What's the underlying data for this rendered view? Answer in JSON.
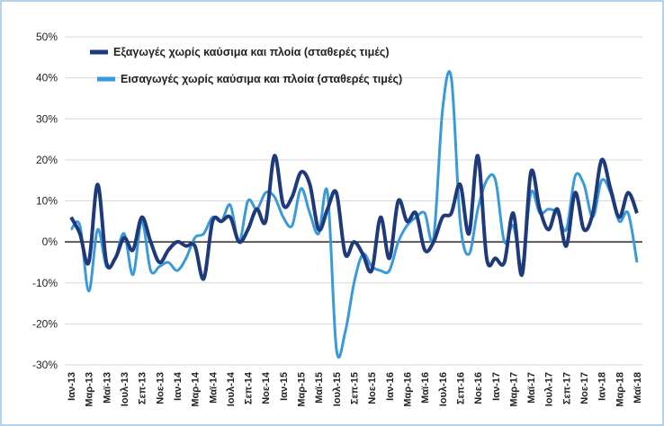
{
  "chart_data": {
    "type": "line",
    "categories": [
      "Ιαν-13",
      null,
      "Μαρ-13",
      null,
      "Μαϊ-13",
      null,
      "Ιουλ-13",
      null,
      "Σεπ-13",
      null,
      "Νοε-13",
      null,
      "Ιαν-14",
      null,
      "Μαρ-14",
      null,
      "Μαϊ-14",
      null,
      "Ιουλ-14",
      null,
      "Σεπ-14",
      null,
      "Νοε-14",
      null,
      "Ιαν-15",
      null,
      "Μαρ-15",
      null,
      "Μαϊ-15",
      null,
      "Ιουλ-15",
      null,
      "Σεπ-15",
      null,
      "Νοε-15",
      null,
      "Ιαν-16",
      null,
      "Μαρ-16",
      null,
      "Μαϊ-16",
      null,
      "Ιουλ-16",
      null,
      "Σεπ-16",
      null,
      "Νοε-16",
      null,
      "Ιαν-17",
      null,
      "Μαρ-17",
      null,
      "Μαϊ-17",
      null,
      "Ιουλ-17",
      null,
      "Σεπ-17",
      null,
      "Νοε-17",
      null,
      "Ιαν-18",
      null,
      "Μαρ-18",
      null,
      "Μαϊ-18"
    ],
    "series": [
      {
        "name": "Εξαγωγές χωρίς καύσιμα και πλοία (σταθερές τιμές)",
        "color": "#1f3a7a",
        "values": [
          6,
          2,
          -5,
          14,
          -5,
          -4,
          1,
          -2,
          6,
          0,
          -5,
          -2,
          0,
          -1,
          -1,
          -9,
          5,
          5,
          6,
          0,
          3,
          8,
          5,
          21,
          9,
          11,
          17,
          14,
          3,
          8,
          12,
          -3,
          0,
          -3,
          -7,
          6,
          -4,
          10,
          5,
          7,
          -2,
          0,
          6,
          7,
          14,
          2,
          21,
          -4,
          -4,
          -5,
          7,
          -8,
          17,
          8,
          3,
          8,
          -1,
          12,
          3,
          7,
          20,
          13,
          6,
          12,
          7
        ]
      },
      {
        "name": "Εισαγωγές χωρίς καύσιμα και πλοία (σταθερές τιμές)",
        "color": "#3a9ad9",
        "values": [
          3,
          4,
          -12,
          3,
          -6,
          -4,
          2,
          -8,
          5,
          -7,
          -6,
          -5,
          -7,
          -4,
          1,
          2,
          6,
          5,
          9,
          0,
          10,
          8,
          12,
          11,
          6,
          4,
          13,
          7,
          2,
          12,
          -26,
          -22,
          -10,
          -3,
          -6,
          -7,
          -7,
          0,
          4,
          6,
          7,
          1,
          32,
          40,
          5,
          -3,
          8,
          15,
          15,
          0,
          4,
          -6,
          12,
          7,
          8,
          7,
          3,
          16,
          14,
          6,
          15,
          12,
          5,
          7,
          -5
        ]
      }
    ],
    "ylim": [
      -30,
      50
    ],
    "yticks": [
      {
        "value": -30,
        "label": "-30%"
      },
      {
        "value": -20,
        "label": "-20%"
      },
      {
        "value": -10,
        "label": "-10%"
      },
      {
        "value": 0,
        "label": "0%"
      },
      {
        "value": 10,
        "label": "10%"
      },
      {
        "value": 20,
        "label": "20%"
      },
      {
        "value": 30,
        "label": "30%"
      },
      {
        "value": 40,
        "label": "40%"
      },
      {
        "value": 50,
        "label": "50%"
      }
    ],
    "grid": true,
    "legend": "upper left"
  }
}
